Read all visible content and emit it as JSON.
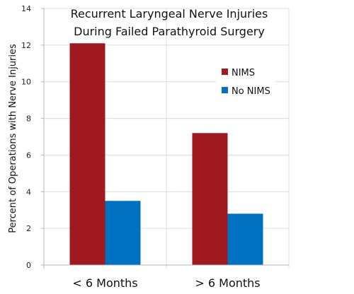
{
  "chart_data": {
    "type": "bar",
    "title_lines": [
      "Recurrent Laryngeal Nerve Injuries",
      "During Failed Parathyroid Surgery"
    ],
    "xlabel": "",
    "ylabel": "Percent of Operations with Nerve Injuries",
    "categories": [
      "< 6 Months",
      "> 6 Months"
    ],
    "series": [
      {
        "name": "NIMS",
        "color": "#a0191f",
        "values": [
          12.1,
          7.2
        ]
      },
      {
        "name": "No NIMS",
        "color": "#0070c0",
        "values": [
          3.5,
          2.8
        ]
      }
    ],
    "ylim": [
      0,
      14
    ],
    "yticks": [
      0,
      2,
      4,
      6,
      8,
      10,
      12,
      14
    ],
    "grid": true,
    "legend": "top-right"
  }
}
